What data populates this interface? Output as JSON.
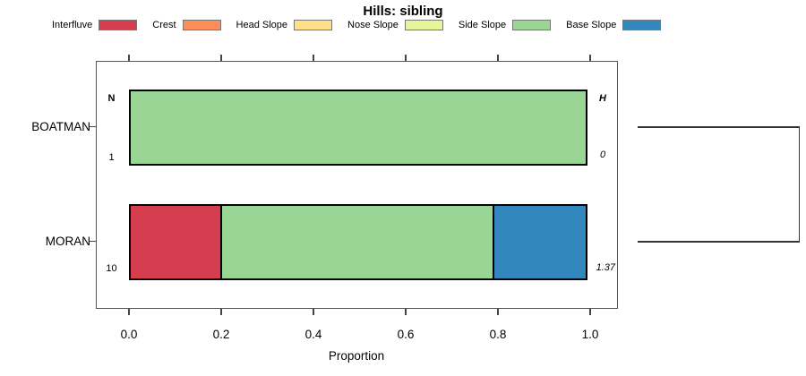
{
  "title": "Hills: sibling",
  "legend": {
    "items": [
      {
        "label": "Interfluve",
        "color": "#D53E4F"
      },
      {
        "label": "Crest",
        "color": "#FC8D59"
      },
      {
        "label": "Head Slope",
        "color": "#FEE08B"
      },
      {
        "label": "Nose Slope",
        "color": "#E6F598"
      },
      {
        "label": "Side Slope",
        "color": "#99D594"
      },
      {
        "label": "Base Slope",
        "color": "#3288BD"
      }
    ]
  },
  "chart_data": {
    "type": "bar",
    "orientation": "horizontal",
    "stacked": true,
    "title": "Hills: sibling",
    "xlabel": "Proportion",
    "xlim": [
      0,
      1
    ],
    "xticks": [
      0.0,
      0.2,
      0.4,
      0.6,
      0.8,
      1.0
    ],
    "xtick_labels": [
      "0.0",
      "0.2",
      "0.4",
      "0.6",
      "0.8",
      "1.0"
    ],
    "grid": false,
    "legend_position": "top",
    "categories": [
      "BOATMAN",
      "MORAN"
    ],
    "series": [
      {
        "name": "Interfluve",
        "color": "#D53E4F",
        "values": [
          0,
          0.2
        ]
      },
      {
        "name": "Crest",
        "color": "#FC8D59",
        "values": [
          0,
          0
        ]
      },
      {
        "name": "Head Slope",
        "color": "#FEE08B",
        "values": [
          0,
          0
        ]
      },
      {
        "name": "Nose Slope",
        "color": "#E6F598",
        "values": [
          0,
          0
        ]
      },
      {
        "name": "Side Slope",
        "color": "#99D594",
        "values": [
          1.0,
          0.6
        ]
      },
      {
        "name": "Base Slope",
        "color": "#3288BD",
        "values": [
          0,
          0.2
        ]
      }
    ],
    "annotations": {
      "n_header": "N",
      "h_header": "H",
      "rows": [
        {
          "category": "BOATMAN",
          "n": "1",
          "h": "0"
        },
        {
          "category": "MORAN",
          "n": "10",
          "h": "1.37"
        }
      ]
    },
    "dendrogram": {
      "joined": [
        "BOATMAN",
        "MORAN"
      ]
    }
  }
}
